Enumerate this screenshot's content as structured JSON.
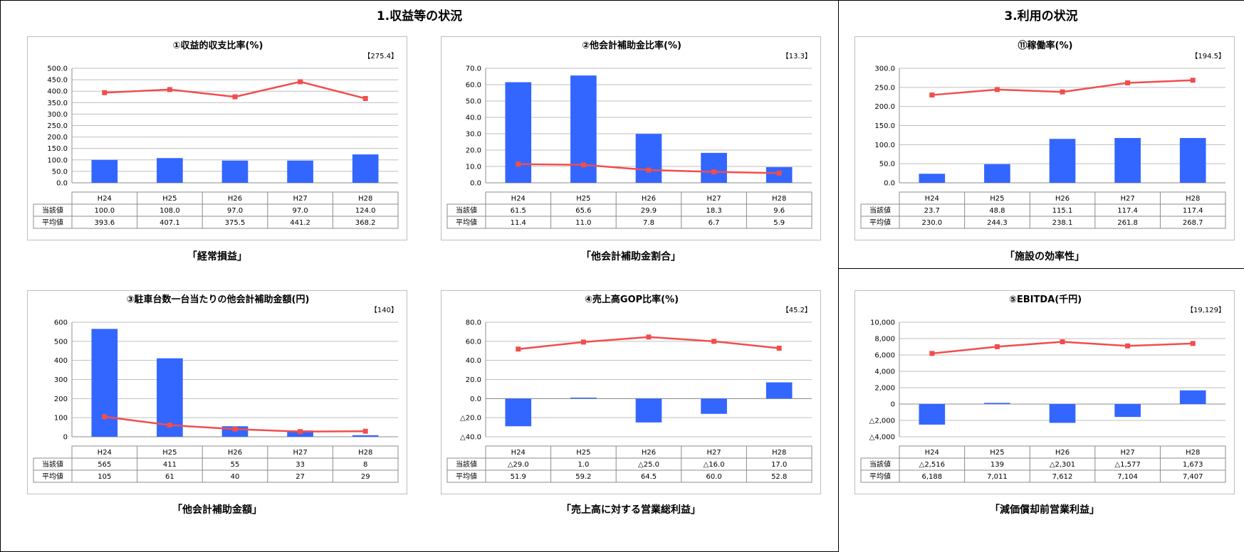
{
  "sections": {
    "left_title": "1.収益等の状況",
    "right_title": "3.利用の状況"
  },
  "colors": {
    "bar": "#3366ff",
    "line": "#f24d4d",
    "grid": "#bfbfbf"
  },
  "row_labels": [
    "当該値",
    "平均値"
  ],
  "chart_data": [
    {
      "id": "c1",
      "type": "bar+line",
      "title": "①収益的収支比率(%)",
      "note": "【275.4】",
      "caption": "「経常損益」",
      "categories": [
        "H24",
        "H25",
        "H26",
        "H27",
        "H28"
      ],
      "series": [
        {
          "values": [
            100.0,
            108.0,
            97.0,
            97.0,
            124.0
          ],
          "display": [
            "100.0",
            "108.0",
            "97.0",
            "97.0",
            "124.0"
          ]
        },
        {
          "values": [
            393.6,
            407.1,
            375.5,
            441.2,
            368.2
          ],
          "display": [
            "393.6",
            "407.1",
            "375.5",
            "441.2",
            "368.2"
          ]
        }
      ],
      "ylim": [
        0,
        500
      ],
      "yticks": [
        0,
        50,
        100,
        150,
        200,
        250,
        300,
        350,
        400,
        450,
        500
      ],
      "ytick_labels": [
        "0.0",
        "50.0",
        "100.0",
        "150.0",
        "200.0",
        "250.0",
        "300.0",
        "350.0",
        "400.0",
        "450.0",
        "500.0"
      ]
    },
    {
      "id": "c2",
      "type": "bar+line",
      "title": "②他会計補助金比率(%)",
      "note": "【13.3】",
      "caption": "「他会計補助金割合」",
      "categories": [
        "H24",
        "H25",
        "H26",
        "H27",
        "H28"
      ],
      "series": [
        {
          "values": [
            61.5,
            65.6,
            29.9,
            18.3,
            9.6
          ],
          "display": [
            "61.5",
            "65.6",
            "29.9",
            "18.3",
            "9.6"
          ]
        },
        {
          "values": [
            11.4,
            11.0,
            7.8,
            6.7,
            5.9
          ],
          "display": [
            "11.4",
            "11.0",
            "7.8",
            "6.7",
            "5.9"
          ]
        }
      ],
      "ylim": [
        0,
        70
      ],
      "yticks": [
        0,
        10,
        20,
        30,
        40,
        50,
        60,
        70
      ],
      "ytick_labels": [
        "0.0",
        "10.0",
        "20.0",
        "30.0",
        "40.0",
        "50.0",
        "60.0",
        "70.0"
      ]
    },
    {
      "id": "c11",
      "type": "bar+line",
      "title": "⑪稼働率(%)",
      "note": "【194.5】",
      "caption": "「施設の効率性」",
      "categories": [
        "H24",
        "H25",
        "H26",
        "H27",
        "H28"
      ],
      "series": [
        {
          "values": [
            23.7,
            48.8,
            115.1,
            117.4,
            117.4
          ],
          "display": [
            "23.7",
            "48.8",
            "115.1",
            "117.4",
            "117.4"
          ]
        },
        {
          "values": [
            230.0,
            244.3,
            238.1,
            261.8,
            268.7
          ],
          "display": [
            "230.0",
            "244.3",
            "238.1",
            "261.8",
            "268.7"
          ]
        }
      ],
      "ylim": [
        0,
        300
      ],
      "yticks": [
        0,
        50,
        100,
        150,
        200,
        250,
        300
      ],
      "ytick_labels": [
        "0.0",
        "50.0",
        "100.0",
        "150.0",
        "200.0",
        "250.0",
        "300.0"
      ]
    },
    {
      "id": "c3",
      "type": "bar+line",
      "title": "③駐車台数一台当たりの他会計補助金額(円)",
      "note": "【140】",
      "caption": "「他会計補助金額」",
      "categories": [
        "H24",
        "H25",
        "H26",
        "H27",
        "H28"
      ],
      "series": [
        {
          "values": [
            565,
            411,
            55,
            33,
            8
          ],
          "display": [
            "565",
            "411",
            "55",
            "33",
            "8"
          ]
        },
        {
          "values": [
            105,
            61,
            40,
            27,
            29
          ],
          "display": [
            "105",
            "61",
            "40",
            "27",
            "29"
          ]
        }
      ],
      "ylim": [
        0,
        600
      ],
      "yticks": [
        0,
        100,
        200,
        300,
        400,
        500,
        600
      ],
      "ytick_labels": [
        "0",
        "100",
        "200",
        "300",
        "400",
        "500",
        "600"
      ]
    },
    {
      "id": "c4",
      "type": "bar+line",
      "title": "④売上高GOP比率(%)",
      "note": "【45.2】",
      "caption": "「売上高に対する営業総利益」",
      "categories": [
        "H24",
        "H25",
        "H26",
        "H27",
        "H28"
      ],
      "series": [
        {
          "values": [
            -29.0,
            1.0,
            -25.0,
            -16.0,
            17.0
          ],
          "display": [
            "△29.0",
            "1.0",
            "△25.0",
            "△16.0",
            "17.0"
          ]
        },
        {
          "values": [
            51.9,
            59.2,
            64.5,
            60.0,
            52.8
          ],
          "display": [
            "51.9",
            "59.2",
            "64.5",
            "60.0",
            "52.8"
          ]
        }
      ],
      "ylim": [
        -40,
        80
      ],
      "yticks": [
        -40,
        -20,
        0,
        20,
        40,
        60,
        80
      ],
      "ytick_labels": [
        "△40.0",
        "△20.0",
        "0.0",
        "20.0",
        "40.0",
        "60.0",
        "80.0"
      ]
    },
    {
      "id": "c5",
      "type": "bar+line",
      "title": "⑤EBITDA(千円)",
      "note": "【19,129】",
      "caption": "「減価償却前営業利益」",
      "categories": [
        "H24",
        "H25",
        "H26",
        "H27",
        "H28"
      ],
      "series": [
        {
          "values": [
            -2516,
            139,
            -2301,
            -1577,
            1673
          ],
          "display": [
            "△2,516",
            "139",
            "△2,301",
            "△1,577",
            "1,673"
          ]
        },
        {
          "values": [
            6188,
            7011,
            7612,
            7104,
            7407
          ],
          "display": [
            "6,188",
            "7,011",
            "7,612",
            "7,104",
            "7,407"
          ]
        }
      ],
      "ylim": [
        -4000,
        10000
      ],
      "yticks": [
        -4000,
        -2000,
        0,
        2000,
        4000,
        6000,
        8000,
        10000
      ],
      "ytick_labels": [
        "△4,000",
        "△2,000",
        "0",
        "2,000",
        "4,000",
        "6,000",
        "8,000",
        "10,000"
      ]
    }
  ]
}
